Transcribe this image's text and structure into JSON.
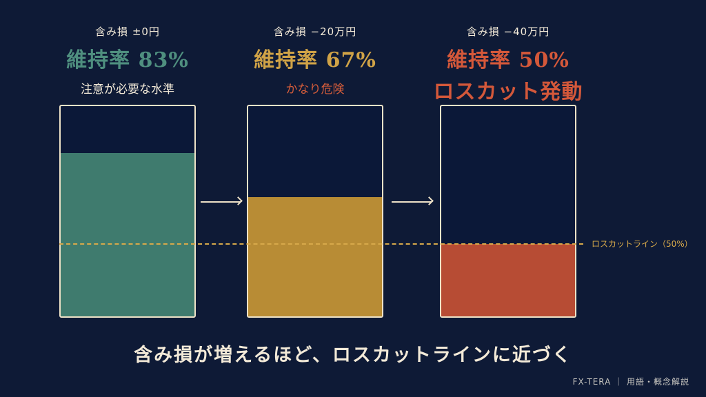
{
  "colors": {
    "background": "#0e1a36",
    "safe": "#3f7b6e",
    "warning": "#b88c35",
    "danger": "#b74c34",
    "losscut_line": "#d7a94a",
    "text": "#f3ead8"
  },
  "stages": [
    {
      "loss_label": "含み損 ±0円",
      "rate_label": "維持率 83%",
      "note": "注意が必要な水準",
      "rate": 83,
      "rate_color": "#4f8f7f",
      "note_color": "#f3ead8",
      "fill_color": "#3f7b6e"
    },
    {
      "loss_label": "含み損 −20万円",
      "rate_label": "維持率 67%",
      "note": "かなり危険",
      "rate": 67,
      "rate_color": "#d0a347",
      "note_color": "#d45c3a",
      "fill_color": "#b88c35"
    },
    {
      "loss_label": "含み損 −40万円",
      "rate_label": "維持率 50%",
      "note": "ロスカット発動",
      "rate": 50,
      "rate_color": "#d4583a",
      "note_color": "#d4583a",
      "fill_color": "#b74c34"
    }
  ],
  "losscut": {
    "label": "ロスカットライン（50%）",
    "rate": 50
  },
  "caption": "含み損が増えるほど、ロスカットラインに近づく",
  "footer": "FX-TERA ｜ 用語・概念解説"
}
